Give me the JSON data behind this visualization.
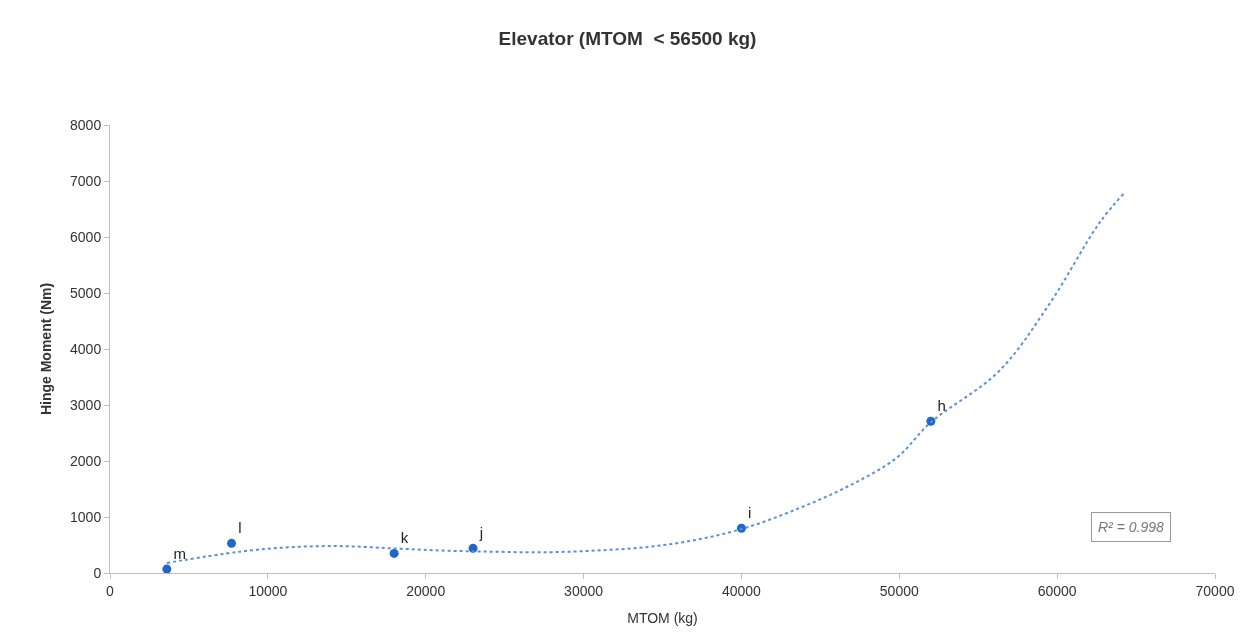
{
  "chart_data": {
    "type": "scatter",
    "title": "Elevator (MTOM  < 56500 kg)",
    "xlabel": "MTOM (kg)",
    "ylabel": "Hinge Moment (Nm)",
    "xlim": [
      0,
      70000
    ],
    "xticks": [
      0,
      10000,
      20000,
      30000,
      40000,
      50000,
      60000,
      70000
    ],
    "ylim": [
      0,
      8000
    ],
    "yticks": [
      0,
      1000,
      2000,
      3000,
      4000,
      5000,
      6000,
      7000,
      8000
    ],
    "series": [
      {
        "color": "#1f68c8",
        "marker": "circle",
        "x": [
          3600,
          7700,
          18000,
          23000,
          40000,
          52000
        ],
        "values": [
          70,
          530,
          350,
          440,
          800,
          2710
        ],
        "value_labels": [
          "m",
          "l",
          "k",
          "j",
          "i",
          "h"
        ]
      },
      {
        "type": "line",
        "color": "#5b8fdc",
        "line_style": "dotted",
        "marker": "none",
        "x": [
          3600,
          8200,
          11400,
          14600,
          17900,
          21100,
          24300,
          27500,
          30700,
          33900,
          37100,
          40300,
          43500,
          46700,
          49800,
          52000,
          56300,
          59500,
          62700,
          64300
        ],
        "values": [
          180,
          380,
          460,
          480,
          440,
          400,
          380,
          370,
          400,
          460,
          590,
          810,
          1140,
          1540,
          2050,
          2690,
          3600,
          4800,
          6260,
          6800
        ]
      }
    ],
    "annotations": [
      "R² = 0.998"
    ]
  }
}
